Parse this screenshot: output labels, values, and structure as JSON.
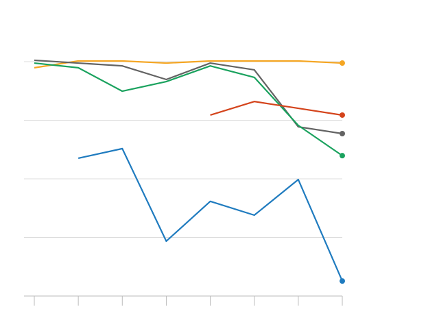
{
  "chart_data": {
    "type": "line",
    "categories": [
      null,
      null,
      null,
      null,
      null,
      null,
      null,
      null
    ],
    "ylim": [
      0,
      100
    ],
    "yticks": [
      0,
      25,
      50,
      75,
      100
    ],
    "grid": true,
    "series": [
      {
        "color": "#f5a623",
        "values": [
          97.4,
          100.3,
          100.3,
          99.4,
          100.3,
          100.3,
          100.3,
          99.4
        ]
      },
      {
        "color": "#636363",
        "values": [
          100.6,
          99.4,
          98.2,
          92.4,
          99.4,
          96.5,
          72.2,
          69.3
        ]
      },
      {
        "color": "#1aa25e",
        "values": [
          99.4,
          97.4,
          87.4,
          91.5,
          98.2,
          93.3,
          72.8,
          59.9
        ]
      },
      {
        "color": "#d4441c",
        "values": [
          null,
          null,
          null,
          null,
          77.2,
          83.0,
          80.1,
          77.2
        ]
      },
      {
        "color": "#1f7bbf",
        "values": [
          null,
          58.8,
          62.9,
          23.4,
          40.4,
          34.5,
          49.7,
          6.4
        ]
      }
    ]
  }
}
